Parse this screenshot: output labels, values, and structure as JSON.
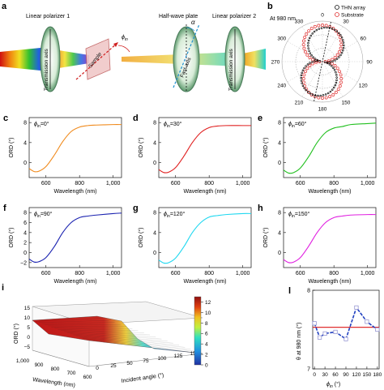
{
  "panel_letters": {
    "a": "a",
    "b": "b",
    "c": "c",
    "d": "d",
    "e": "e",
    "f": "f",
    "g": "g",
    "h": "h",
    "i": "i",
    "l": "l"
  },
  "optics": {
    "polarizer1": "Linear polarizer 1",
    "halfwave": "Half-wave plate",
    "polarizer2": "Linear polarizer 2",
    "transmission_axis": "Transmission axis",
    "sample": "Sample",
    "fast_axis": "Fast axis",
    "phi_label": "ϕ",
    "phi_sub": "in",
    "alpha": "α"
  },
  "colors": {
    "c": "#f08a1c",
    "d": "#e02020",
    "e": "#22c020",
    "f": "#1a22b0",
    "g": "#20d8f0",
    "h": "#e020e0",
    "polar_thn": "#111111",
    "polar_sub": "#e03030",
    "line_l": "#2040c0",
    "ref_l": "#e03030"
  },
  "chart_data": [
    {
      "id": "b",
      "type": "scatter",
      "coordinate": "polar",
      "title": "At 980 nm",
      "angular_ticks": [
        "0",
        "30",
        "60",
        "90",
        "120",
        "150",
        "180",
        "210",
        "240",
        "270",
        "300",
        "330"
      ],
      "legend": [
        "THN array",
        "Substrate"
      ],
      "legend_position": "top-right",
      "series": [
        {
          "name": "THN array",
          "shape": "figure-eight",
          "major_axis_deg": 12,
          "radial_max": 0.85
        },
        {
          "name": "Substrate",
          "shape": "figure-eight",
          "major_axis_deg": 0,
          "radial_max": 0.9
        }
      ]
    },
    {
      "id": "c",
      "type": "line",
      "label": "ϕ",
      "label_sub": "in",
      "label_value": "=0°",
      "xlabel": "Wavelength (nm)",
      "ylabel": "ORD (°)",
      "xlim": [
        500,
        1050
      ],
      "ylim": [
        -3,
        9
      ],
      "xticks": [
        "600",
        "800",
        "1,000"
      ],
      "yticks": [
        "0",
        "4",
        "8"
      ],
      "x": [
        500,
        530,
        560,
        600,
        650,
        700,
        750,
        800,
        850,
        900,
        1000,
        1050
      ],
      "y": [
        -1.2,
        -1.8,
        -1.7,
        -0.8,
        1.5,
        4.2,
        6.2,
        7.1,
        7.4,
        7.5,
        7.6,
        7.6
      ]
    },
    {
      "id": "d",
      "type": "line",
      "label": "ϕ",
      "label_sub": "in",
      "label_value": "=30°",
      "xlabel": "Wavelength (nm)",
      "ylabel": "ORD (°)",
      "xlim": [
        500,
        1050
      ],
      "ylim": [
        -3,
        9
      ],
      "xticks": [
        "600",
        "800",
        "1,000"
      ],
      "yticks": [
        "0",
        "4",
        "8"
      ],
      "x": [
        500,
        530,
        560,
        600,
        650,
        700,
        750,
        800,
        850,
        900,
        1000,
        1050
      ],
      "y": [
        -1.4,
        -2.0,
        -1.9,
        -1.0,
        1.3,
        4.0,
        6.0,
        7.0,
        7.3,
        7.4,
        7.4,
        7.4
      ]
    },
    {
      "id": "e",
      "type": "line",
      "label": "ϕ",
      "label_sub": "in",
      "label_value": "=60°",
      "xlabel": "Wavelength (nm)",
      "ylabel": "ORD (°)",
      "xlim": [
        500,
        1050
      ],
      "ylim": [
        -3,
        9
      ],
      "xticks": [
        "600",
        "800",
        "1,000"
      ],
      "yticks": [
        "0",
        "4",
        "8"
      ],
      "x": [
        500,
        530,
        560,
        600,
        650,
        700,
        750,
        800,
        850,
        900,
        1000,
        1050
      ],
      "y": [
        -1.5,
        -2.1,
        -2.0,
        -1.1,
        1.2,
        4.0,
        6.0,
        6.9,
        7.2,
        7.6,
        7.8,
        7.9
      ]
    },
    {
      "id": "f",
      "type": "line",
      "label": "ϕ",
      "label_sub": "in",
      "label_value": "=90°",
      "xlabel": "Wavelength (nm)",
      "ylabel": "ORD (°)",
      "xlim": [
        500,
        1050
      ],
      "ylim": [
        -3,
        9
      ],
      "xticks": [
        "600",
        "800",
        "1,000"
      ],
      "yticks": [
        "−2",
        "0",
        "2",
        "4",
        "6",
        "8"
      ],
      "x": [
        500,
        530,
        560,
        600,
        650,
        700,
        750,
        800,
        850,
        900,
        1000,
        1050
      ],
      "y": [
        -1.3,
        -1.9,
        -1.8,
        -1.0,
        1.2,
        4.0,
        6.0,
        7.0,
        7.3,
        7.5,
        7.8,
        7.9
      ]
    },
    {
      "id": "g",
      "type": "line",
      "label": "ϕ",
      "label_sub": "in",
      "label_value": "=120°",
      "xlabel": "Wavelength (nm)",
      "ylabel": "ORD (°)",
      "xlim": [
        500,
        1050
      ],
      "ylim": [
        -3,
        9
      ],
      "xticks": [
        "600",
        "800",
        "1,000"
      ],
      "yticks": [
        "0",
        "4",
        "8"
      ],
      "x": [
        500,
        530,
        560,
        600,
        650,
        700,
        750,
        800,
        850,
        900,
        1000,
        1050
      ],
      "y": [
        -1.5,
        -2.1,
        -2.0,
        -1.1,
        1.2,
        4.0,
        6.0,
        7.1,
        7.4,
        7.6,
        7.8,
        7.8
      ]
    },
    {
      "id": "h",
      "type": "line",
      "label": "ϕ",
      "label_sub": "in",
      "label_value": "=150°",
      "xlabel": "Wavelength (nm)",
      "ylabel": "ORD (°)",
      "xlim": [
        500,
        1050
      ],
      "ylim": [
        -3,
        9
      ],
      "xticks": [
        "600",
        "800",
        "1,000"
      ],
      "yticks": [
        "0",
        "4",
        "8"
      ],
      "x": [
        500,
        530,
        560,
        600,
        650,
        700,
        750,
        800,
        850,
        900,
        1000,
        1050
      ],
      "y": [
        -1.4,
        -2.0,
        -1.9,
        -1.0,
        1.3,
        4.0,
        6.0,
        7.0,
        7.3,
        7.5,
        7.6,
        7.6
      ]
    },
    {
      "id": "i",
      "type": "area",
      "surface": "3d",
      "xlabel": "Wavelength (nm)",
      "ylabel": "ORD (°)",
      "zlabel": "Incident angle (°)",
      "wavelength_ticks": [
        "1,000",
        "900",
        "800",
        "700",
        "600"
      ],
      "angle_ticks": [
        "0",
        "25",
        "50",
        "75",
        "100",
        "125",
        "150"
      ],
      "ord_ticks": [
        "−5",
        "0",
        "5",
        "10",
        "15"
      ],
      "colorbar_ticks": [
        "0",
        "2",
        "4",
        "6",
        "8",
        "10",
        "12"
      ]
    },
    {
      "id": "l",
      "type": "line",
      "xlabel": "ϕ",
      "xlabel_sub": "in",
      "xlabel_unit": " (°)",
      "ylabel": "θ at 980 nm (°)",
      "xlim": [
        -5,
        185
      ],
      "ylim": [
        7,
        8
      ],
      "xticks": [
        "0",
        "30",
        "60",
        "90",
        "120",
        "150",
        "180"
      ],
      "yticks": [
        "7",
        "8"
      ],
      "x": [
        0,
        15,
        30,
        60,
        90,
        120,
        150,
        180
      ],
      "y": [
        7.58,
        7.4,
        7.45,
        7.47,
        7.38,
        7.78,
        7.6,
        7.5
      ],
      "reference_y": 7.53
    }
  ]
}
